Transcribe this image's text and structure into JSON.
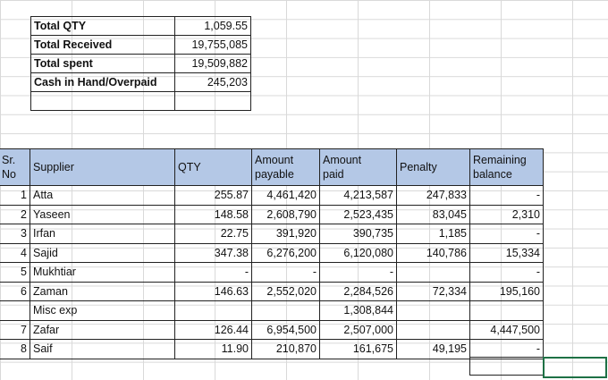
{
  "summary": [
    {
      "label": "Total QTY",
      "value": "1,059.55"
    },
    {
      "label": "Total Received",
      "value": "19,755,085"
    },
    {
      "label": "Total spent",
      "value": "19,509,882"
    },
    {
      "label": "Cash in Hand/Overpaid",
      "value": "245,203"
    }
  ],
  "table": {
    "headers": {
      "sr_1": "Sr.",
      "sr_2": "No",
      "supplier": "Supplier",
      "qty": "QTY",
      "payable_1": "Amount",
      "payable_2": "payable",
      "paid_1": "Amount",
      "paid_2": "paid",
      "penalty": "Penalty",
      "remaining_1": "Remaining",
      "remaining_2": "balance"
    },
    "rows": [
      {
        "sr": "1",
        "supplier": "Atta",
        "qty": "255.87",
        "payable": "4,461,420",
        "paid": "4,213,587",
        "penalty": "247,833",
        "remaining": "-"
      },
      {
        "sr": "2",
        "supplier": "Yaseen",
        "qty": "148.58",
        "payable": "2,608,790",
        "paid": "2,523,435",
        "penalty": "83,045",
        "remaining": "2,310"
      },
      {
        "sr": "3",
        "supplier": "Irfan",
        "qty": "22.75",
        "payable": "391,920",
        "paid": "390,735",
        "penalty": "1,185",
        "remaining": "-"
      },
      {
        "sr": "4",
        "supplier": "Sajid",
        "qty": "347.38",
        "payable": "6,276,200",
        "paid": "6,120,080",
        "penalty": "140,786",
        "remaining": "15,334"
      },
      {
        "sr": "5",
        "supplier": "Mukhtiar",
        "qty": "-",
        "payable": "-",
        "paid": "-",
        "penalty": "",
        "remaining": "-"
      },
      {
        "sr": "6",
        "supplier": "Zaman",
        "qty": "146.63",
        "payable": "2,552,020",
        "paid": "2,284,526",
        "penalty": "72,334",
        "remaining": "195,160"
      },
      {
        "sr": "",
        "supplier": "Misc exp",
        "qty": "",
        "payable": "",
        "paid": "1,308,844",
        "penalty": "",
        "remaining": ""
      },
      {
        "sr": "7",
        "supplier": "Zafar",
        "qty": "126.44",
        "payable": "6,954,500",
        "paid": "2,507,000",
        "penalty": "",
        "remaining": "4,447,500"
      },
      {
        "sr": "8",
        "supplier": "Saif",
        "qty": "11.90",
        "payable": "210,870",
        "paid": "161,675",
        "penalty": "49,195",
        "remaining": "-"
      }
    ]
  }
}
